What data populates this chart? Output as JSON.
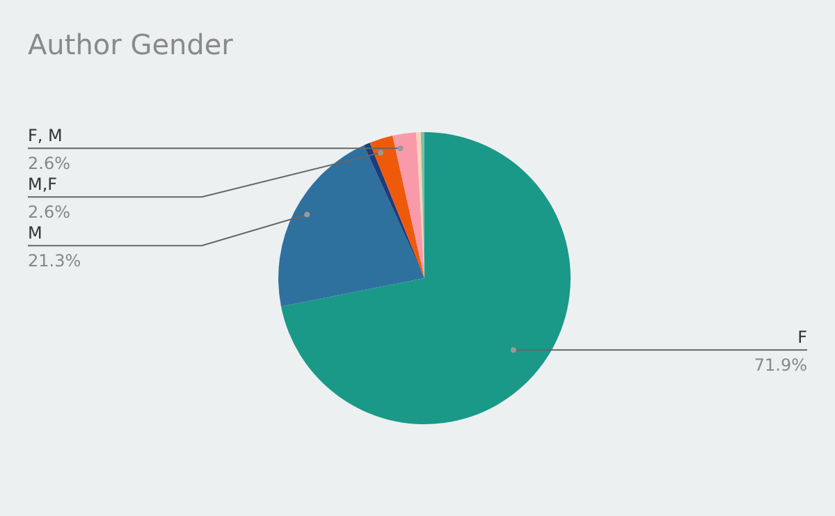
{
  "chart_data": {
    "type": "pie",
    "title": "Author Gender",
    "categories": [
      "F",
      "M",
      null,
      "M,F",
      "F, M",
      null,
      null
    ],
    "values": [
      71.9,
      21.3,
      0.7,
      2.6,
      2.6,
      0.5,
      0.4
    ],
    "colors": [
      "#1a9988",
      "#2e709e",
      "#1f3c7a",
      "#ef5a0a",
      "#f99aab",
      "#fbd2b8",
      "#76c2a8"
    ],
    "value_labels": [
      "71.9%",
      "21.3%",
      null,
      "2.6%",
      "2.6%",
      null,
      null
    ],
    "legend": false
  }
}
